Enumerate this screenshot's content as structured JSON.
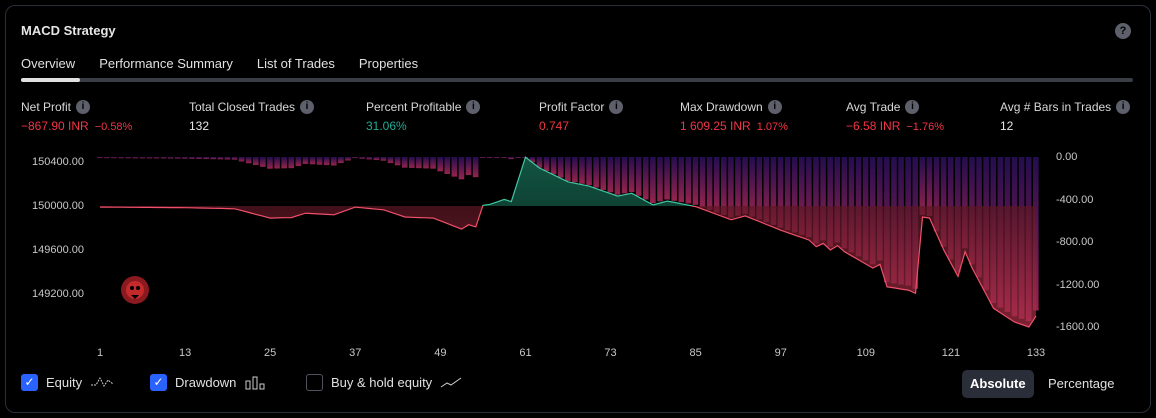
{
  "header": {
    "title": "MACD Strategy",
    "help_icon": "?"
  },
  "tabs": [
    {
      "label": "Overview",
      "active": true
    },
    {
      "label": "Performance Summary"
    },
    {
      "label": "List of Trades"
    },
    {
      "label": "Properties"
    }
  ],
  "stats": [
    {
      "label": "Net Profit",
      "value": "−867.90 INR",
      "pct": "−0.58%",
      "color": "red"
    },
    {
      "label": "Total Closed Trades",
      "value": "132",
      "pct": "",
      "color": "white"
    },
    {
      "label": "Percent Profitable",
      "value": "31.06%",
      "pct": "",
      "color": "green"
    },
    {
      "label": "Profit Factor",
      "value": "0.747",
      "pct": "",
      "color": "red"
    },
    {
      "label": "Max Drawdown",
      "value": "1 609.25 INR",
      "pct": "1.07%",
      "color": "red"
    },
    {
      "label": "Avg Trade",
      "value": "−6.58 INR",
      "pct": "−1.76%",
      "color": "red"
    },
    {
      "label": "Avg # Bars in Trades",
      "value": "12",
      "pct": "",
      "color": "white"
    }
  ],
  "chart_data": {
    "type": "line",
    "x_ticks": [
      "1",
      "13",
      "25",
      "37",
      "49",
      "61",
      "73",
      "85",
      "97",
      "109",
      "121",
      "133"
    ],
    "left_ticks": [
      "150400.00",
      "150000.00",
      "149600.00",
      "149200.00"
    ],
    "right_ticks": [
      "0.00",
      "-400.00",
      "-800.00",
      "-1200.00",
      "-1600.00"
    ],
    "baseline": 150000,
    "equity_knots": [
      [
        1,
        149990
      ],
      [
        13,
        149985
      ],
      [
        20,
        149975
      ],
      [
        25,
        149890
      ],
      [
        28,
        149895
      ],
      [
        30,
        149935
      ],
      [
        34,
        149920
      ],
      [
        37,
        149990
      ],
      [
        41,
        149965
      ],
      [
        44,
        149900
      ],
      [
        48,
        149890
      ],
      [
        52,
        149790
      ],
      [
        53,
        149830
      ],
      [
        54,
        149810
      ],
      [
        55,
        150005
      ],
      [
        56,
        150015
      ],
      [
        58,
        150060
      ],
      [
        59,
        150040
      ],
      [
        61,
        150445
      ],
      [
        63,
        150345
      ],
      [
        67,
        150220
      ],
      [
        70,
        150180
      ],
      [
        74,
        150090
      ],
      [
        76,
        150115
      ],
      [
        79,
        150010
      ],
      [
        81,
        150045
      ],
      [
        85,
        149995
      ],
      [
        90,
        149875
      ],
      [
        92,
        149910
      ],
      [
        97,
        149780
      ],
      [
        101,
        149690
      ],
      [
        102,
        149630
      ],
      [
        103,
        149660
      ],
      [
        104,
        149600
      ],
      [
        105,
        149640
      ],
      [
        106,
        149585
      ],
      [
        110,
        149435
      ],
      [
        111,
        149470
      ],
      [
        112,
        149265
      ],
      [
        115,
        149235
      ],
      [
        116,
        149205
      ],
      [
        117,
        149900
      ],
      [
        118,
        149890
      ],
      [
        120,
        149600
      ],
      [
        122,
        149360
      ],
      [
        123,
        149585
      ],
      [
        124,
        149435
      ],
      [
        127,
        149070
      ],
      [
        130,
        148945
      ],
      [
        132,
        148900
      ],
      [
        133,
        149000
      ]
    ],
    "series": [
      {
        "name": "Equity"
      },
      {
        "name": "Drawdown"
      }
    ]
  },
  "legend": [
    {
      "label": "Equity",
      "checked": true
    },
    {
      "label": "Drawdown",
      "checked": true
    },
    {
      "label": "Buy & hold equity",
      "checked": false
    }
  ],
  "mode": {
    "absolute": "Absolute",
    "percentage": "Percentage"
  }
}
